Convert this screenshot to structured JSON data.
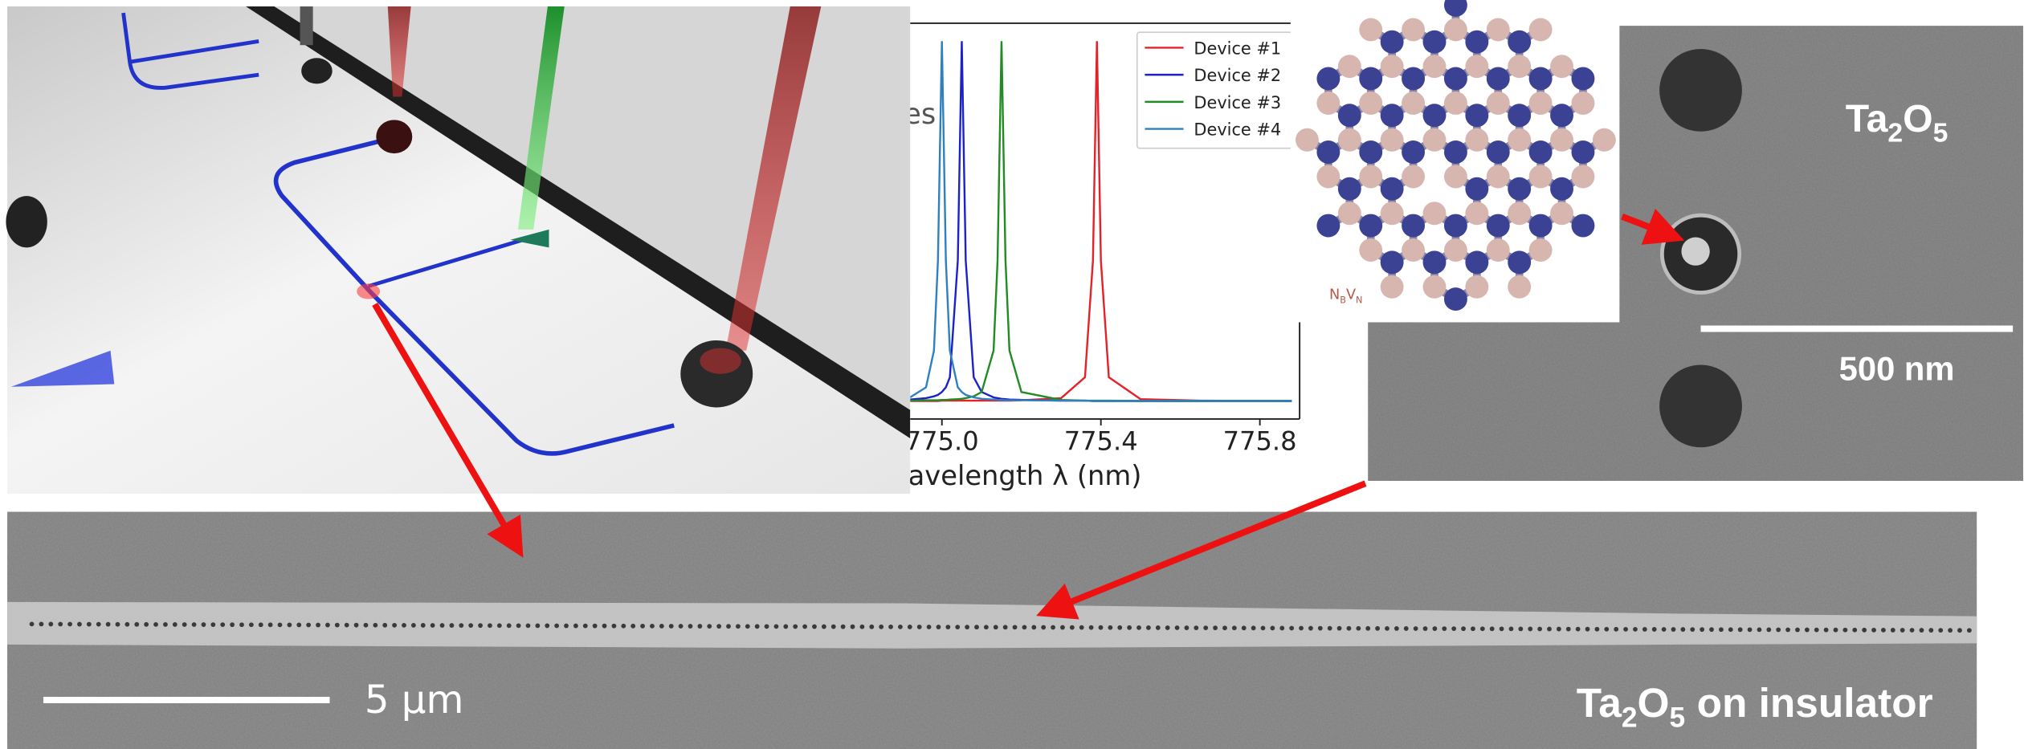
{
  "chart_data": {
    "type": "line",
    "ylabel": "es",
    "xlabel": "Wavelength λ (nm)",
    "x": [
      774.92,
      774.96,
      774.98,
      774.99,
      775.0,
      775.01,
      775.02,
      775.04,
      775.05,
      775.06,
      775.08,
      775.1,
      775.13,
      775.14,
      775.15,
      775.16,
      775.17,
      775.2,
      775.3,
      775.36,
      775.38,
      775.39,
      775.4,
      775.42,
      775.5,
      775.65,
      775.88
    ],
    "xlim": [
      774.92,
      775.9
    ],
    "xticks": [
      {
        "value": 775.0,
        "label": "775.0"
      },
      775.4,
      775.8
    ],
    "ylim": [
      -0.05,
      1.05
    ],
    "legend": "upper right",
    "series": [
      {
        "name": "Device #1",
        "color": "#e3232a",
        "values": [
          0,
          0,
          0,
          0,
          0.001,
          0.001,
          0.001,
          0.001,
          0.001,
          0.001,
          0.001,
          0.001,
          0.001,
          0.001,
          0.001,
          0.001,
          0.001,
          0.002,
          0.008,
          0.066,
          0.39,
          1,
          0.39,
          0.066,
          0.005,
          0.001,
          0
        ]
      },
      {
        "name": "Device #2",
        "color": "#1c22c9",
        "values": [
          0.004,
          0.008,
          0.013,
          0.017,
          0.025,
          0.038,
          0.066,
          0.39,
          1,
          0.39,
          0.066,
          0.025,
          0.01,
          0.008,
          0.006,
          0.005,
          0.004,
          0.003,
          0.001,
          0.001,
          0,
          0,
          0,
          0,
          0,
          0,
          0
        ]
      },
      {
        "name": "Device #3",
        "color": "#238b23",
        "values": [
          0.001,
          0.002,
          0.002,
          0.002,
          0.003,
          0.003,
          0.004,
          0.005,
          0.006,
          0.008,
          0.013,
          0.025,
          0.14,
          0.39,
          1,
          0.39,
          0.14,
          0.025,
          0.003,
          0.001,
          0.001,
          0.001,
          0.001,
          0.001,
          0,
          0,
          0
        ]
      },
      {
        "name": "Device #4",
        "color": "#2f80bf",
        "values": [
          0.01,
          0.038,
          0.14,
          0.39,
          1,
          0.39,
          0.14,
          0.038,
          0.025,
          0.017,
          0.01,
          0.006,
          0.004,
          0.003,
          0.003,
          0.002,
          0.002,
          0.002,
          0.001,
          0.001,
          0,
          0,
          0,
          0,
          0,
          0,
          0
        ]
      }
    ]
  },
  "hbn_panel": {
    "label": [
      "N",
      "B",
      "V",
      "N"
    ]
  },
  "sem_top": {
    "material": [
      "Ta",
      "2",
      "O",
      "5"
    ],
    "scale_bar": "500 nm"
  },
  "sem_bottom": {
    "scale_bar": "5 µm",
    "material": [
      "Ta",
      "2",
      "O",
      "5",
      "on insulator"
    ]
  }
}
